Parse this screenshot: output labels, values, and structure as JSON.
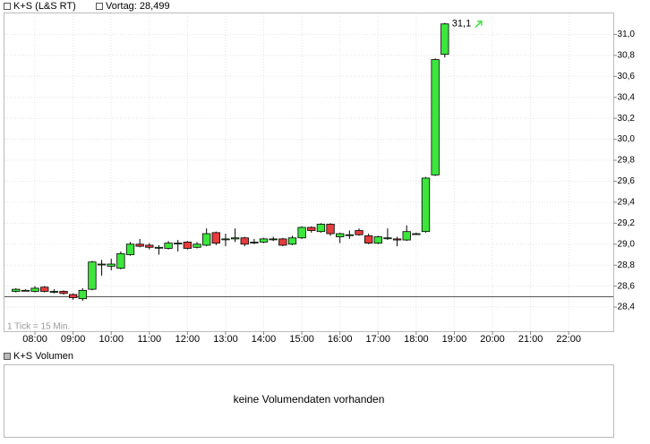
{
  "chart_data": {
    "type": "candlestick",
    "legend": [
      "K+S (L&S RT)",
      "Vortag: 28,499"
    ],
    "previous_close": 28.499,
    "note": "1 Tick = 15 Min.",
    "x": [
      7.5,
      7.75,
      8,
      8.25,
      8.5,
      8.75,
      9,
      9.25,
      9.5,
      9.75,
      10,
      10.25,
      10.5,
      10.75,
      11,
      11.25,
      11.5,
      11.75,
      12,
      12.25,
      12.5,
      12.75,
      13,
      13.25,
      13.5,
      13.75,
      14,
      14.25,
      14.5,
      14.75,
      15,
      15.25,
      15.5,
      15.75,
      16,
      16.25,
      16.5,
      16.75,
      17,
      17.25,
      17.5,
      17.75,
      18,
      18.25,
      18.5,
      18.75
    ],
    "open": [
      28.55,
      28.56,
      28.55,
      28.59,
      28.55,
      28.55,
      28.52,
      28.48,
      28.57,
      28.81,
      28.79,
      28.77,
      28.9,
      29.0,
      28.99,
      28.97,
      28.96,
      29.01,
      29.02,
      28.97,
      28.99,
      29.11,
      29.05,
      29.05,
      29.06,
      29.02,
      29.02,
      29.05,
      29.05,
      29.0,
      29.06,
      29.16,
      29.12,
      29.19,
      29.07,
      29.09,
      29.13,
      29.08,
      29.01,
      29.06,
      29.05,
      29.04,
      29.1,
      29.12,
      29.66,
      30.81
    ],
    "high": [
      28.58,
      28.57,
      28.6,
      28.6,
      28.57,
      28.56,
      28.53,
      28.58,
      28.84,
      28.85,
      28.86,
      28.93,
      29.02,
      29.05,
      29.01,
      28.99,
      29.03,
      29.04,
      29.03,
      29.02,
      29.15,
      29.12,
      29.1,
      29.15,
      29.07,
      29.05,
      29.06,
      29.07,
      29.06,
      29.08,
      29.17,
      29.17,
      29.2,
      29.2,
      29.11,
      29.13,
      29.15,
      29.1,
      29.08,
      29.15,
      29.07,
      29.18,
      29.11,
      29.64,
      30.77,
      31.11
    ],
    "low": [
      28.54,
      28.55,
      28.54,
      28.54,
      28.53,
      28.52,
      28.47,
      28.46,
      28.56,
      28.7,
      28.75,
      28.76,
      28.89,
      28.97,
      28.95,
      28.9,
      28.95,
      28.93,
      28.95,
      28.96,
      28.98,
      28.99,
      28.98,
      29.02,
      28.98,
      29.0,
      29.01,
      29.03,
      28.98,
      28.99,
      29.05,
      29.11,
      29.11,
      29.08,
      29.01,
      29.05,
      29.08,
      29.0,
      29.0,
      29.04,
      28.98,
      29.03,
      29.1,
      29.11,
      29.65,
      30.78
    ],
    "close": [
      28.57,
      28.56,
      28.58,
      28.55,
      28.55,
      28.53,
      28.49,
      28.56,
      28.83,
      28.81,
      28.81,
      28.91,
      29.0,
      28.98,
      28.97,
      28.97,
      29.01,
      29.01,
      28.96,
      29.0,
      29.1,
      29.01,
      29.05,
      29.06,
      29.0,
      29.02,
      29.05,
      29.05,
      28.99,
      29.06,
      29.16,
      29.13,
      29.19,
      29.1,
      29.1,
      29.09,
      29.09,
      29.01,
      29.07,
      29.06,
      29.04,
      29.12,
      29.1,
      29.63,
      30.76,
      31.1
    ],
    "up_color": "#3ce63c",
    "down_color": "#e63c3c",
    "annotation": {
      "x": 18.75,
      "value": 31.1,
      "label": "31,1"
    },
    "xlim": [
      7.2,
      23.17
    ],
    "ylim": [
      28.17,
      31.2
    ],
    "xticks": [
      {
        "value": 8,
        "label": "08:00"
      },
      {
        "value": 9,
        "label": "09:00"
      },
      {
        "value": 10,
        "label": "10:00"
      },
      {
        "value": 11,
        "label": "11:00"
      },
      {
        "value": 12,
        "label": "12:00"
      },
      {
        "value": 13,
        "label": "13:00"
      },
      {
        "value": 14,
        "label": "14:00"
      },
      {
        "value": 15,
        "label": "15:00"
      },
      {
        "value": 16,
        "label": "16:00"
      },
      {
        "value": 17,
        "label": "17:00"
      },
      {
        "value": 18,
        "label": "18:00"
      },
      {
        "value": 19,
        "label": "19:00"
      },
      {
        "value": 20,
        "label": "20:00"
      },
      {
        "value": 21,
        "label": "21:00"
      },
      {
        "value": 22,
        "label": "22:00"
      }
    ],
    "yticks": [
      {
        "value": 28.4,
        "label": "28,4"
      },
      {
        "value": 28.6,
        "label": "28,6"
      },
      {
        "value": 28.8,
        "label": "28,8"
      },
      {
        "value": 29.0,
        "label": "29,0"
      },
      {
        "value": 29.2,
        "label": "29,2"
      },
      {
        "value": 29.4,
        "label": "29,4"
      },
      {
        "value": 29.6,
        "label": "29,6"
      },
      {
        "value": 29.8,
        "label": "29,8"
      },
      {
        "value": 30.0,
        "label": "30,0"
      },
      {
        "value": 30.2,
        "label": "30,2"
      },
      {
        "value": 30.4,
        "label": "30,4"
      },
      {
        "value": 30.6,
        "label": "30,6"
      },
      {
        "value": 30.8,
        "label": "30,8"
      },
      {
        "value": 31.0,
        "label": "31,0"
      }
    ],
    "grid": true,
    "volume_title": "K+S Volumen",
    "volume_message": "keine Volumendaten vorhanden"
  }
}
